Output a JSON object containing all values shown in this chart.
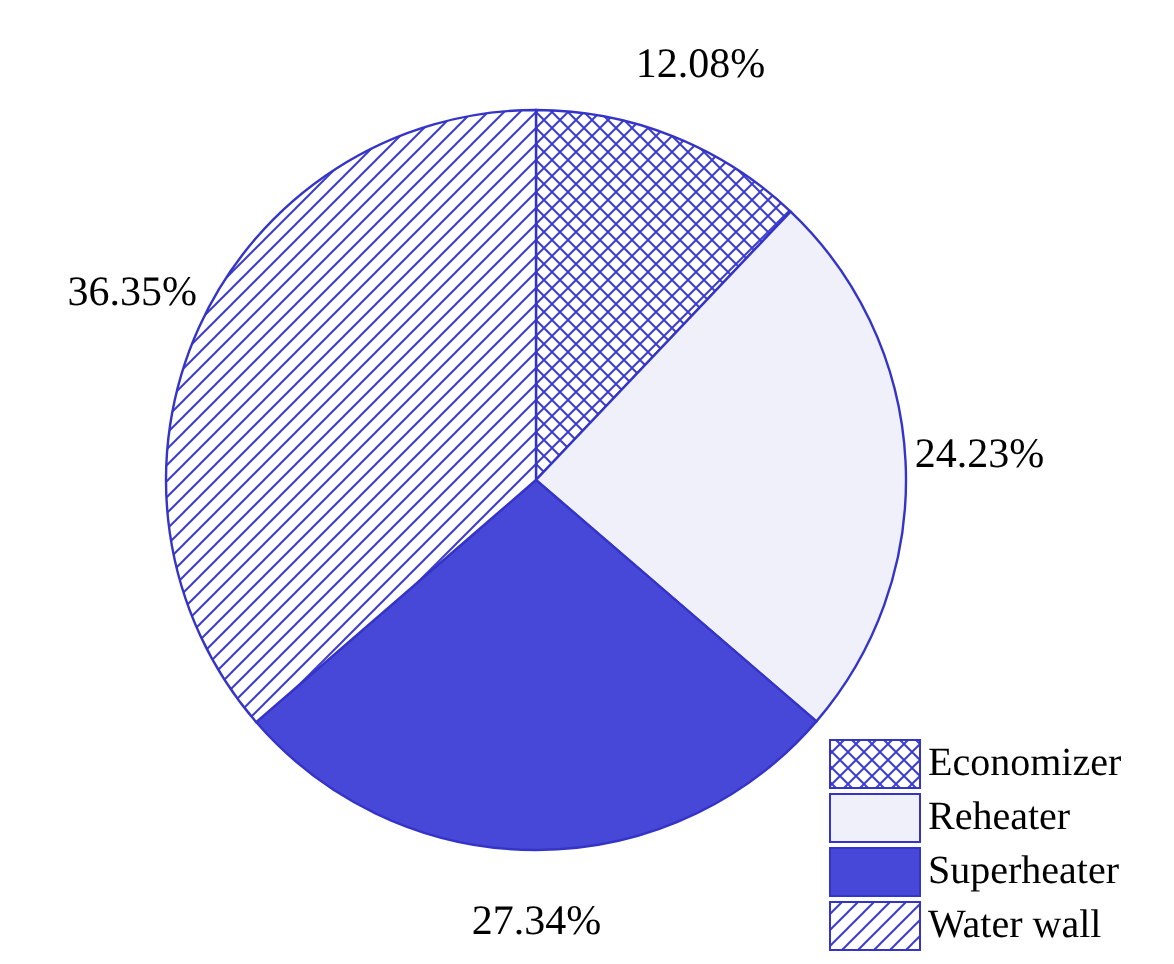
{
  "chart_data": {
    "type": "pie",
    "categories": [
      "Economizer",
      "Reheater",
      "Superheater",
      "Water wall"
    ],
    "values": [
      12.08,
      24.23,
      27.34,
      36.35
    ],
    "value_labels": [
      "12.08%",
      "24.23%",
      "27.34%",
      "36.35%"
    ],
    "colors": [
      "#3c3cd0",
      "#f0f0fa",
      "#4848d8",
      "#3c3cd0"
    ],
    "legend": "bottom right"
  }
}
